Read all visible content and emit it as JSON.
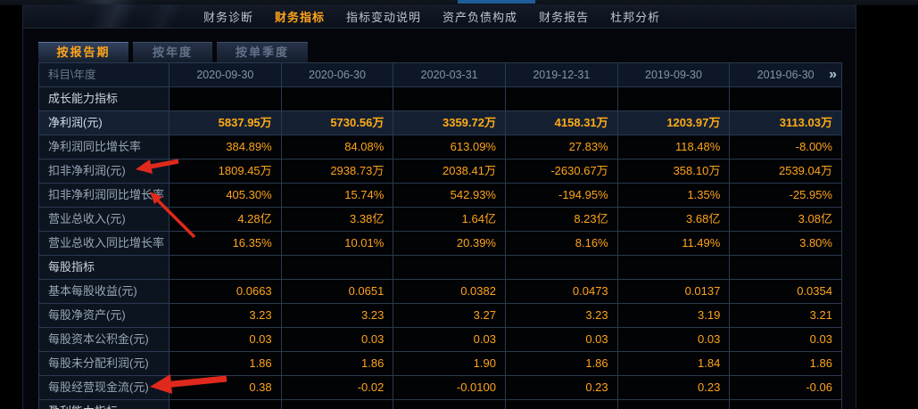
{
  "nav": {
    "items": [
      {
        "label": "财务诊断",
        "active": false
      },
      {
        "label": "财务指标",
        "active": true
      },
      {
        "label": "指标变动说明",
        "active": false
      },
      {
        "label": "资产负债构成",
        "active": false
      },
      {
        "label": "财务报告",
        "active": false
      },
      {
        "label": "杜邦分析",
        "active": false
      }
    ]
  },
  "period_tabs": [
    {
      "label": "按报告期",
      "active": true
    },
    {
      "label": "按年度",
      "active": false
    },
    {
      "label": "按单季度",
      "active": false
    }
  ],
  "table": {
    "corner_label": "科目\\年度",
    "columns": [
      "2020-09-30",
      "2020-06-30",
      "2020-03-31",
      "2019-12-31",
      "2019-09-30",
      "2019-06-30"
    ],
    "more_columns_icon": "»",
    "rows": [
      {
        "label": "成长能力指标",
        "type": "section",
        "highlight": false,
        "bold": false,
        "values": [
          "",
          "",
          "",
          "",
          "",
          ""
        ]
      },
      {
        "label": "净利润(元)",
        "type": "data",
        "highlight": true,
        "bold": true,
        "values": [
          "5837.95万",
          "5730.56万",
          "3359.72万",
          "4158.31万",
          "1203.97万",
          "3113.03万"
        ]
      },
      {
        "label": "净利润同比增长率",
        "type": "data",
        "highlight": false,
        "bold": false,
        "values": [
          "384.89%",
          "84.08%",
          "613.09%",
          "27.83%",
          "118.48%",
          "-8.00%"
        ]
      },
      {
        "label": "扣非净利润(元)",
        "type": "data",
        "highlight": false,
        "bold": false,
        "values": [
          "1809.45万",
          "2938.73万",
          "2038.41万",
          "-2630.67万",
          "358.10万",
          "2539.04万"
        ]
      },
      {
        "label": "扣非净利润同比增长率",
        "type": "data",
        "highlight": false,
        "bold": false,
        "values": [
          "405.30%",
          "15.74%",
          "542.93%",
          "-194.95%",
          "1.35%",
          "-25.95%"
        ]
      },
      {
        "label": "营业总收入(元)",
        "type": "data",
        "highlight": false,
        "bold": false,
        "values": [
          "4.28亿",
          "3.38亿",
          "1.64亿",
          "8.23亿",
          "3.68亿",
          "3.08亿"
        ]
      },
      {
        "label": "营业总收入同比增长率",
        "type": "data",
        "highlight": false,
        "bold": false,
        "values": [
          "16.35%",
          "10.01%",
          "20.39%",
          "8.16%",
          "11.49%",
          "3.80%"
        ]
      },
      {
        "label": "每股指标",
        "type": "section",
        "highlight": false,
        "bold": false,
        "values": [
          "",
          "",
          "",
          "",
          "",
          ""
        ]
      },
      {
        "label": "基本每股收益(元)",
        "type": "data",
        "highlight": false,
        "bold": false,
        "values": [
          "0.0663",
          "0.0651",
          "0.0382",
          "0.0473",
          "0.0137",
          "0.0354"
        ]
      },
      {
        "label": "每股净资产(元)",
        "type": "data",
        "highlight": false,
        "bold": false,
        "values": [
          "3.23",
          "3.23",
          "3.27",
          "3.23",
          "3.19",
          "3.21"
        ]
      },
      {
        "label": "每股资本公积金(元)",
        "type": "data",
        "highlight": false,
        "bold": false,
        "values": [
          "0.03",
          "0.03",
          "0.03",
          "0.03",
          "0.03",
          "0.03"
        ]
      },
      {
        "label": "每股未分配利润(元)",
        "type": "data",
        "highlight": false,
        "bold": false,
        "values": [
          "1.86",
          "1.86",
          "1.90",
          "1.86",
          "1.84",
          "1.86"
        ]
      },
      {
        "label": "每股经营现金流(元)",
        "type": "data",
        "highlight": false,
        "bold": false,
        "values": [
          "0.38",
          "-0.02",
          "-0.0100",
          "0.23",
          "0.23",
          "-0.06"
        ]
      },
      {
        "label": "盈利能力指标",
        "type": "section",
        "highlight": false,
        "bold": false,
        "values": [
          "",
          "",
          "",
          "",
          "",
          ""
        ]
      }
    ]
  },
  "annotations": {
    "arrow_color": "#e0291d",
    "arrow_targets": [
      "扣非净利润(元)",
      "扣非净利润同比增长率",
      "每股经营现金流(元)"
    ]
  },
  "colors": {
    "value_orange": "#ffa41b",
    "active_text": "#ffa41b",
    "highlight_row_bg": "#152032",
    "grid_line": "#2a3950",
    "header_bg": "#0d1725",
    "label_cell_bg": "#0c1420",
    "data_cell_bg": "#020305",
    "top_blue_bar": "#1e5d97",
    "arrow_red": "#e0291d"
  }
}
